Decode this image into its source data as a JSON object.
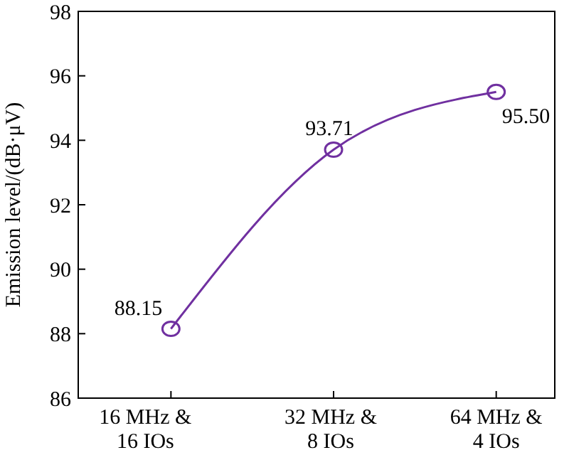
{
  "chart_data": {
    "type": "line",
    "ylabel": "Emission level/(dB·μV)",
    "categories": [
      "16 MHz &\n16 IOs",
      "32 MHz &\n8 IOs",
      "64 MHz &\n4 IOs"
    ],
    "series": [
      {
        "color": "#7030a0",
        "values": [
          88.15,
          93.71,
          95.5
        ],
        "value_labels": [
          "88.15",
          "93.71",
          "95.50"
        ]
      }
    ],
    "ylim": [
      86,
      98
    ],
    "yticks": [
      86,
      88,
      90,
      92,
      94,
      96,
      98
    ],
    "marker": "circle",
    "line_style": "solid"
  }
}
